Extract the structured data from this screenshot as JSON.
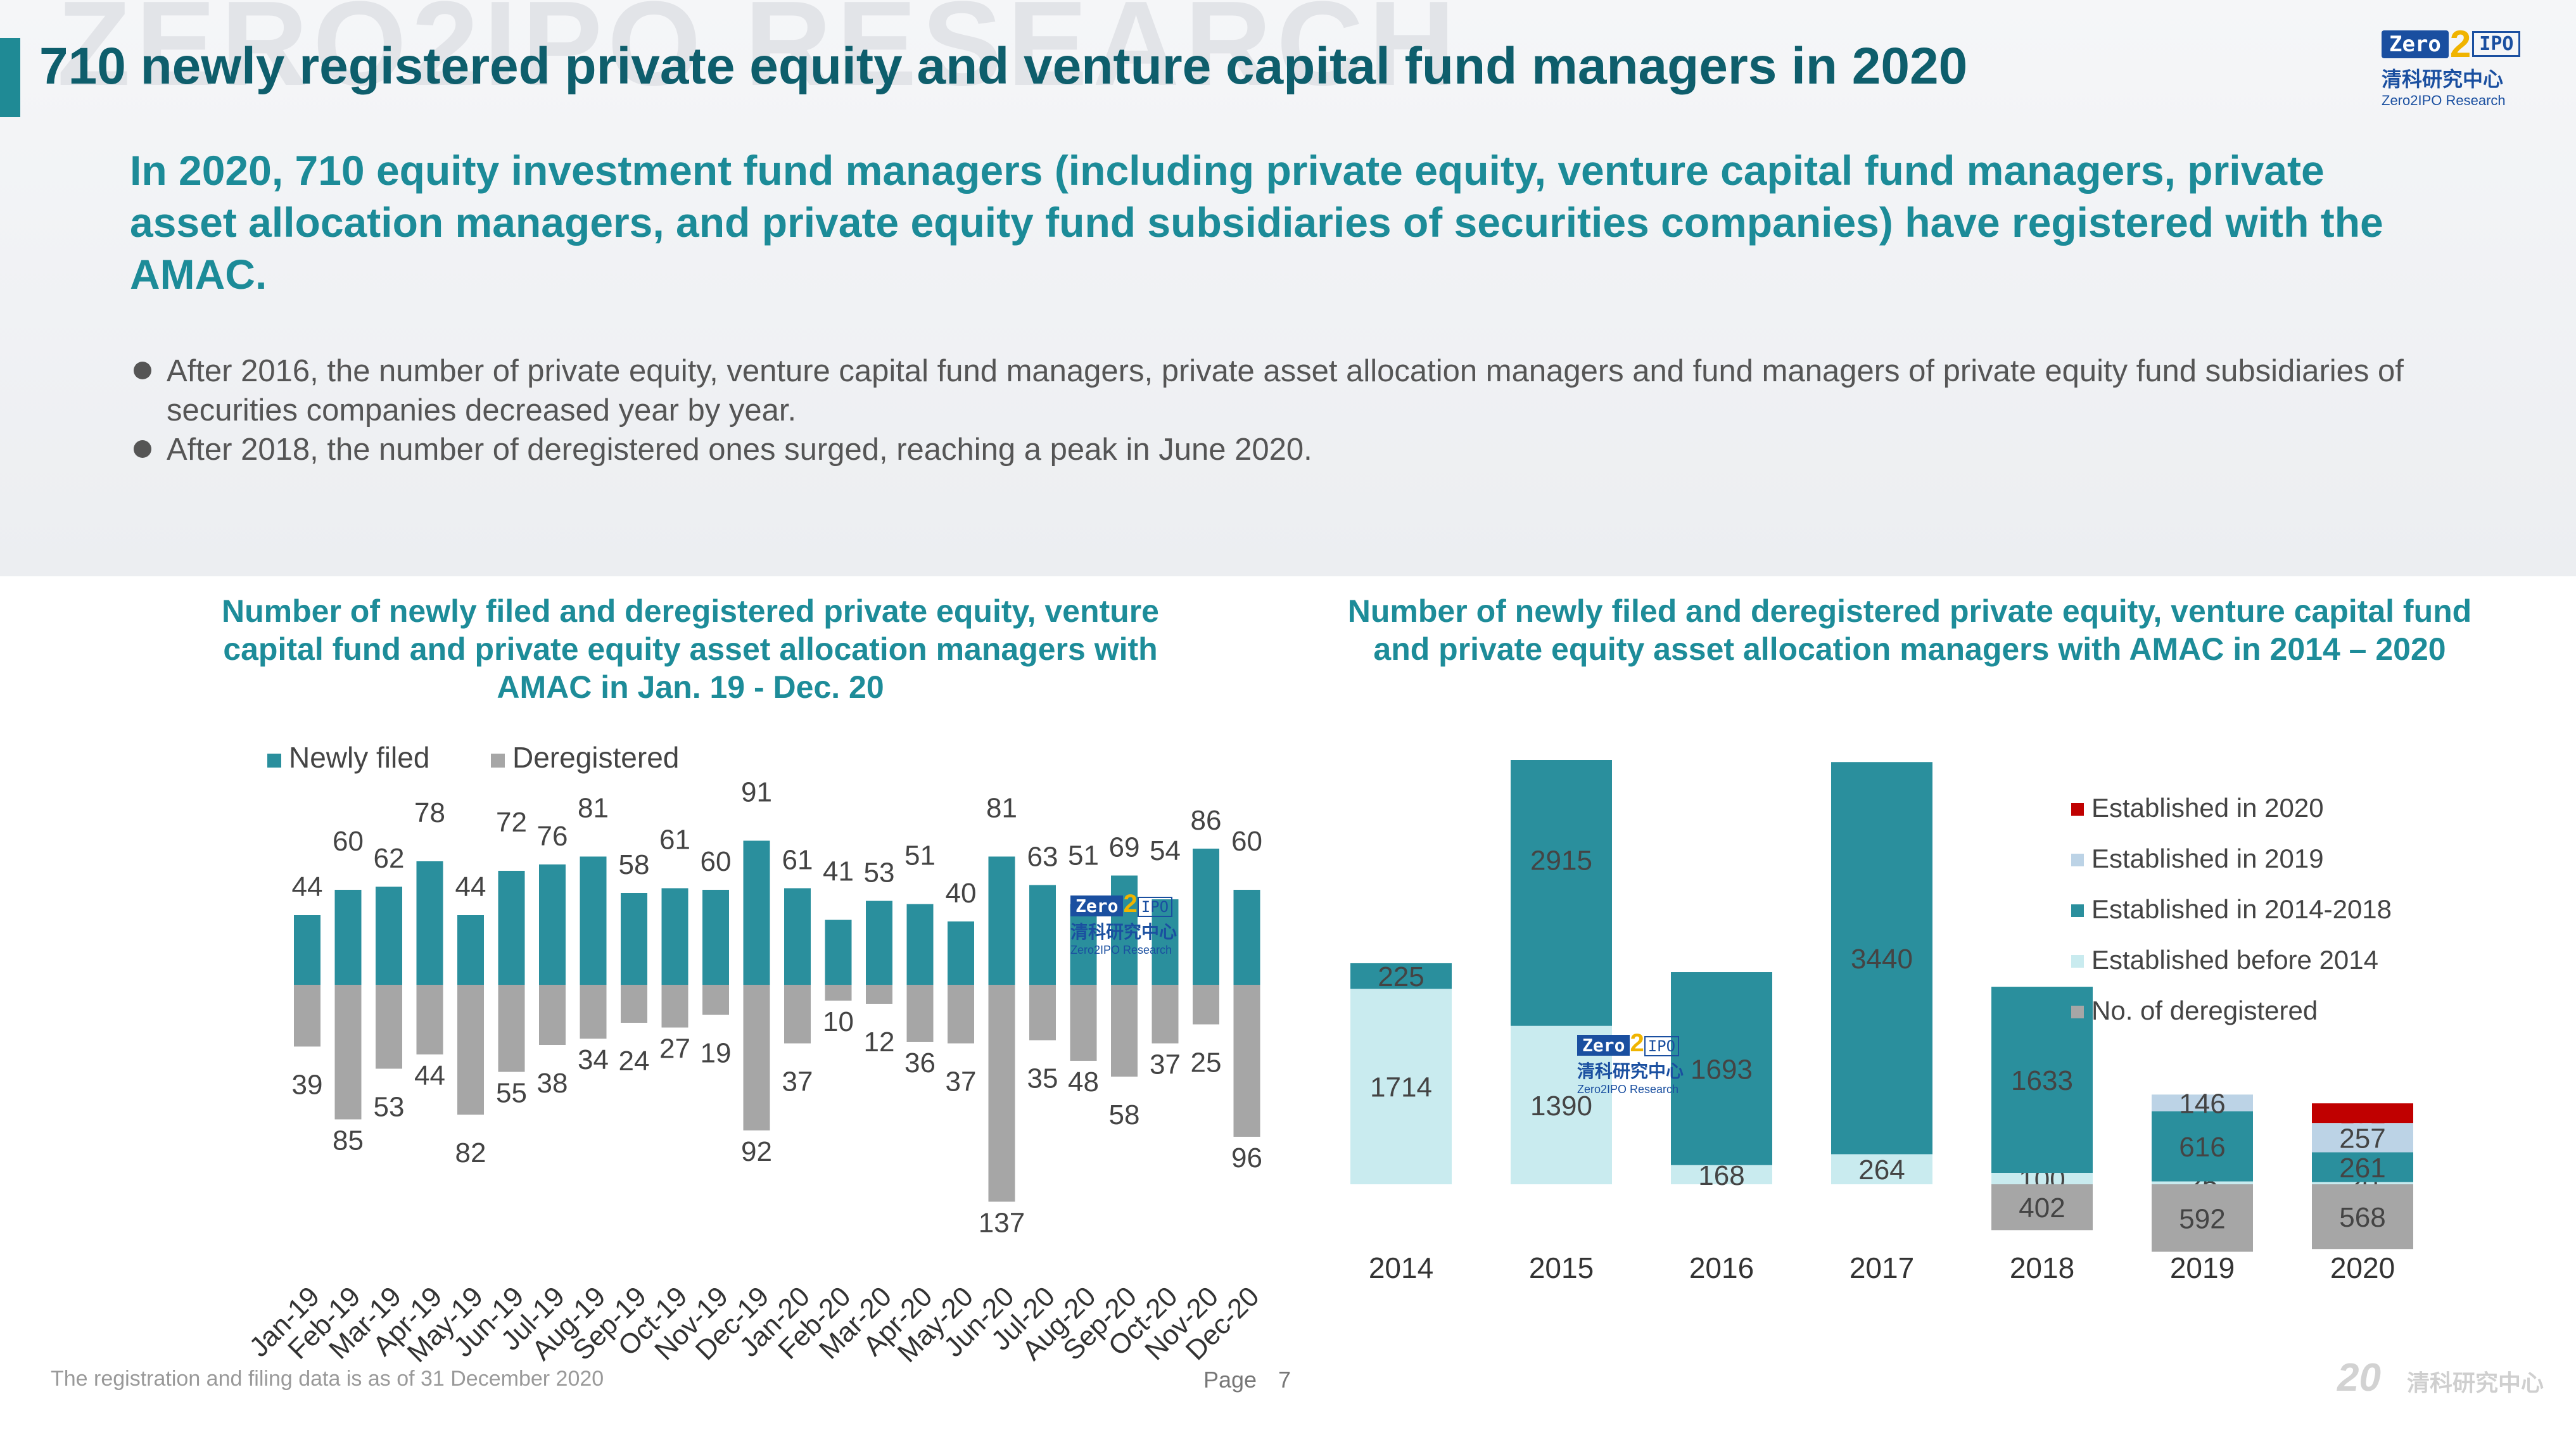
{
  "page": {
    "watermark": "ZERO2IPO RESEARCH",
    "title": "710 newly registered private equity and venture capital fund managers in 2020",
    "subtitle": "In 2020, 710 equity investment fund managers (including private equity, venture capital fund managers, private asset allocation managers, and private equity fund subsidiaries of securities companies) have registered with the AMAC.",
    "bullets": [
      "After 2016, the number of private equity, venture capital fund managers, private asset allocation managers and fund managers of private equity fund subsidiaries of securities companies decreased year by year.",
      "After 2018, the number of deregistered ones surged, reaching a peak in June 2020."
    ],
    "footnote": "The registration and filing data is as of 31 December 2020",
    "page_label": "Page",
    "page_number": "7",
    "brand_20": "20",
    "brand_cn": "清科研究中心"
  },
  "logo": {
    "zero": "Zero",
    "two": "2",
    "ipo": "IPO",
    "cn": "清科研究中心",
    "en": "Zero2IPO Research"
  },
  "colors": {
    "teal": "#2a8f9d",
    "gray": "#a6a6a6",
    "light_cyan": "#c9ebef",
    "light_blue": "#bcd3e6",
    "red": "#c00000"
  },
  "chart_data": [
    {
      "type": "bar",
      "title": "Number of newly filed and deregistered private equity, venture capital fund and private equity asset allocation managers with AMAC in Jan. 19 - Dec. 20",
      "categories": [
        "Jan-19",
        "Feb-19",
        "Mar-19",
        "Apr-19",
        "May-19",
        "Jun-19",
        "Jul-19",
        "Aug-19",
        "Sep-19",
        "Oct-19",
        "Nov-19",
        "Dec-19",
        "Jan-20",
        "Feb-20",
        "Mar-20",
        "Apr-20",
        "May-20",
        "Jun-20",
        "Jul-20",
        "Aug-20",
        "Sep-20",
        "Oct-20",
        "Nov-20",
        "Dec-20"
      ],
      "series": [
        {
          "name": "Newly filed",
          "values": [
            44,
            60,
            62,
            78,
            44,
            72,
            76,
            81,
            58,
            61,
            60,
            91,
            61,
            41,
            53,
            51,
            40,
            81,
            63,
            51,
            69,
            54,
            86,
            60
          ]
        },
        {
          "name": "Deregistered",
          "values": [
            39,
            85,
            53,
            44,
            82,
            55,
            38,
            34,
            24,
            27,
            19,
            92,
            37,
            10,
            12,
            36,
            37,
            137,
            35,
            48,
            58,
            37,
            25,
            96
          ]
        }
      ],
      "legend": "top-left",
      "grid": false
    },
    {
      "type": "bar",
      "stacked": true,
      "title": "Number of newly filed and deregistered private equity, venture capital fund and private equity asset allocation managers with AMAC in 2014 – 2020",
      "categories": [
        "2014",
        "2015",
        "2016",
        "2017",
        "2018",
        "2019",
        "2020"
      ],
      "series": [
        {
          "name": "Established in 2020",
          "values": [
            null,
            null,
            null,
            null,
            null,
            null,
            172
          ]
        },
        {
          "name": "Established in 2019",
          "values": [
            null,
            null,
            null,
            null,
            null,
            146,
            257
          ]
        },
        {
          "name": "Established in 2014-2018",
          "values": [
            225,
            2915,
            1693,
            3440,
            1633,
            616,
            261
          ]
        },
        {
          "name": "Established before 2014",
          "values": [
            1714,
            1390,
            168,
            264,
            100,
            25,
            20
          ]
        },
        {
          "name": "No. of deregistered",
          "values": [
            null,
            null,
            null,
            null,
            402,
            592,
            568
          ]
        }
      ],
      "legend": "right",
      "grid": false
    }
  ]
}
